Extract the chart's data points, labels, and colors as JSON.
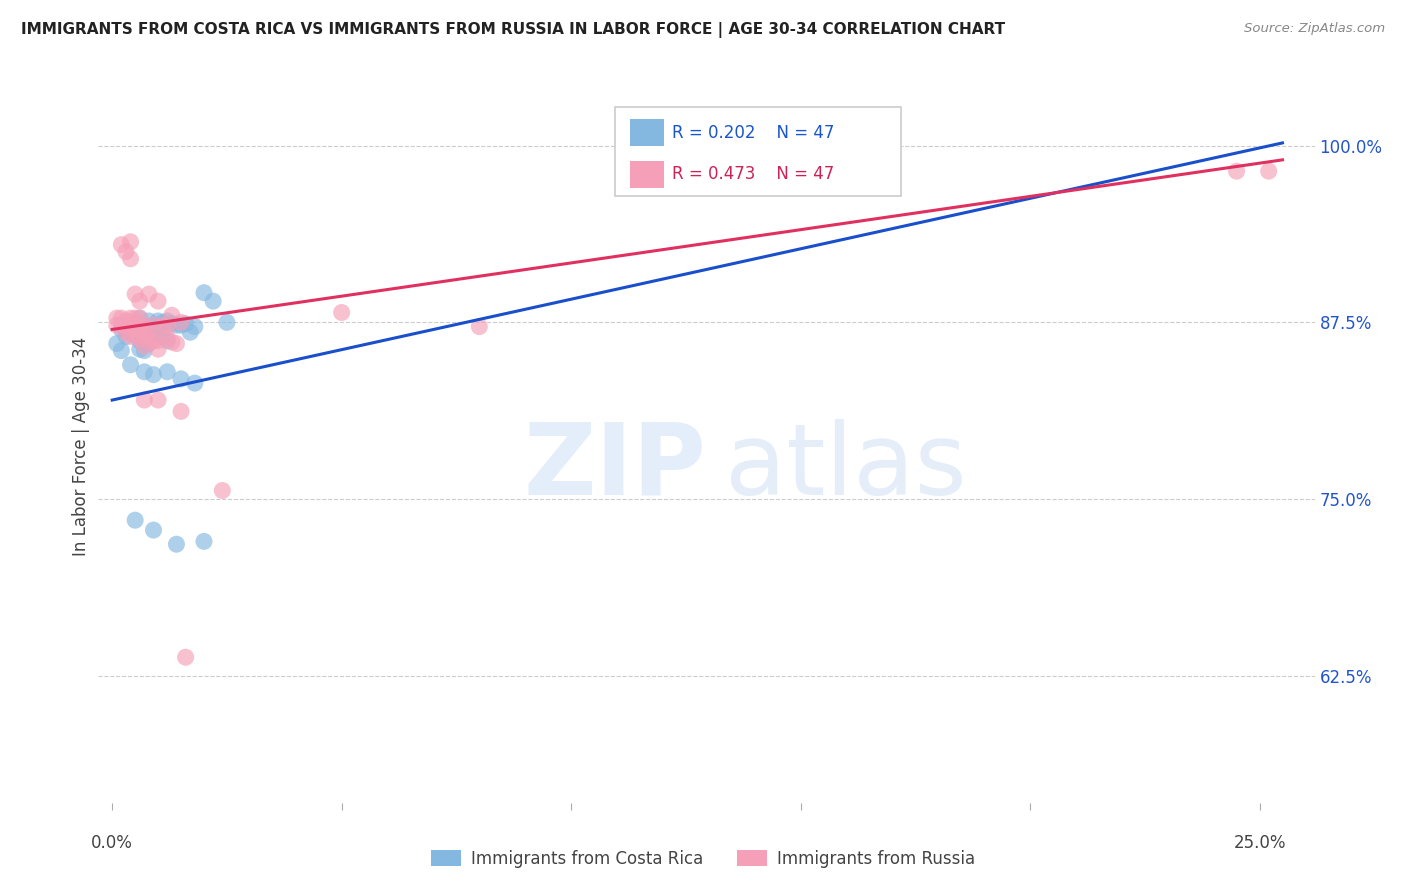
{
  "title": "IMMIGRANTS FROM COSTA RICA VS IMMIGRANTS FROM RUSSIA IN LABOR FORCE | AGE 30-34 CORRELATION CHART",
  "source": "Source: ZipAtlas.com",
  "ylabel": "In Labor Force | Age 30-34",
  "ytick_labels": [
    "100.0%",
    "87.5%",
    "75.0%",
    "62.5%"
  ],
  "ytick_values": [
    1.0,
    0.875,
    0.75,
    0.625
  ],
  "ylim": [
    0.535,
    1.04
  ],
  "xlim": [
    -0.003,
    0.262
  ],
  "r_blue": "0.202",
  "r_pink": "0.473",
  "n": "47",
  "legend_blue_label": "Immigrants from Costa Rica",
  "legend_pink_label": "Immigrants from Russia",
  "blue_color": "#85b8e0",
  "pink_color": "#f5a0b8",
  "line_blue": "#1a4fcc",
  "line_pink": "#e03060",
  "blue_points_x": [
    0.001,
    0.002,
    0.002,
    0.003,
    0.003,
    0.004,
    0.004,
    0.005,
    0.005,
    0.005,
    0.006,
    0.006,
    0.006,
    0.006,
    0.007,
    0.007,
    0.007,
    0.008,
    0.008,
    0.008,
    0.009,
    0.009,
    0.01,
    0.01,
    0.011,
    0.011,
    0.012,
    0.012,
    0.013,
    0.014,
    0.015,
    0.016,
    0.017,
    0.018,
    0.02,
    0.022,
    0.025,
    0.004,
    0.007,
    0.009,
    0.012,
    0.015,
    0.018,
    0.005,
    0.009,
    0.014,
    0.02
  ],
  "blue_points_y": [
    0.86,
    0.855,
    0.87,
    0.865,
    0.87,
    0.868,
    0.872,
    0.873,
    0.866,
    0.875,
    0.878,
    0.868,
    0.862,
    0.856,
    0.872,
    0.863,
    0.855,
    0.876,
    0.869,
    0.86,
    0.873,
    0.865,
    0.876,
    0.866,
    0.875,
    0.865,
    0.876,
    0.862,
    0.874,
    0.873,
    0.873,
    0.874,
    0.868,
    0.872,
    0.896,
    0.89,
    0.875,
    0.845,
    0.84,
    0.838,
    0.84,
    0.835,
    0.832,
    0.735,
    0.728,
    0.718,
    0.72
  ],
  "pink_points_x": [
    0.001,
    0.001,
    0.002,
    0.002,
    0.003,
    0.003,
    0.003,
    0.004,
    0.004,
    0.004,
    0.005,
    0.005,
    0.005,
    0.006,
    0.006,
    0.006,
    0.007,
    0.007,
    0.007,
    0.008,
    0.008,
    0.009,
    0.009,
    0.01,
    0.01,
    0.011,
    0.012,
    0.012,
    0.013,
    0.014,
    0.002,
    0.003,
    0.004,
    0.004,
    0.005,
    0.006,
    0.008,
    0.01,
    0.013,
    0.015,
    0.05,
    0.08,
    0.007,
    0.01,
    0.015,
    0.024,
    0.016,
    0.245,
    0.252
  ],
  "pink_points_y": [
    0.878,
    0.873,
    0.878,
    0.873,
    0.876,
    0.872,
    0.868,
    0.878,
    0.871,
    0.865,
    0.878,
    0.873,
    0.866,
    0.878,
    0.871,
    0.863,
    0.872,
    0.866,
    0.858,
    0.868,
    0.861,
    0.873,
    0.862,
    0.862,
    0.856,
    0.873,
    0.872,
    0.864,
    0.861,
    0.86,
    0.93,
    0.925,
    0.932,
    0.92,
    0.895,
    0.89,
    0.895,
    0.89,
    0.88,
    0.875,
    0.882,
    0.872,
    0.82,
    0.82,
    0.812,
    0.756,
    0.638,
    0.982,
    0.982
  ],
  "blue_regline_x": [
    0.0,
    0.255
  ],
  "blue_regline_y": [
    0.82,
    1.002
  ],
  "pink_regline_x": [
    0.0,
    0.255
  ],
  "pink_regline_y": [
    0.87,
    0.99
  ]
}
